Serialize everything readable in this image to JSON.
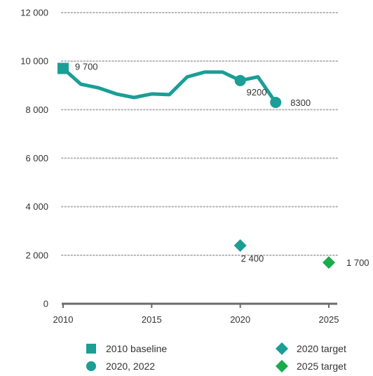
{
  "colors": {
    "line": "#1a9e96",
    "green_target": "#1aab4b",
    "axis": "#6b6b6b",
    "grid": "#b3b3b3",
    "text": "#333333"
  },
  "chart_data": {
    "type": "line",
    "title": "",
    "xlabel": "",
    "ylabel": "",
    "xlim": [
      2010,
      2025
    ],
    "ylim": [
      0,
      12000
    ],
    "x_ticks": [
      {
        "value": 2010,
        "label": "2010"
      },
      {
        "value": 2015,
        "label": "2015"
      },
      {
        "value": 2020,
        "label": "2020"
      },
      {
        "value": 2025,
        "label": "2025"
      }
    ],
    "y_ticks": [
      {
        "value": 0,
        "label": "0"
      },
      {
        "value": 2000,
        "label": "2 000"
      },
      {
        "value": 4000,
        "label": "4 000"
      },
      {
        "value": 6000,
        "label": "6 000"
      },
      {
        "value": 8000,
        "label": "8 000"
      },
      {
        "value": 10000,
        "label": "10 000"
      },
      {
        "value": 12000,
        "label": "12 000"
      }
    ],
    "grid": "horizontal dotted",
    "legend_position": "bottom",
    "series": [
      {
        "x": [
          2010,
          2011,
          2012,
          2013,
          2014,
          2015,
          2016,
          2017,
          2018,
          2019,
          2020,
          2021,
          2022
        ],
        "y": [
          9700,
          9050,
          8900,
          8650,
          8500,
          8650,
          8620,
          9350,
          9550,
          9550,
          9200,
          9350,
          8300
        ]
      }
    ],
    "markers": [
      {
        "name": "2010 baseline",
        "shape": "square",
        "color": "#1a9e96",
        "x": 2010,
        "y": 9700,
        "label": "9 700"
      },
      {
        "name": "2020, 2022",
        "shape": "circle",
        "color": "#1a9e96",
        "x": 2020,
        "y": 9200,
        "label": "9200"
      },
      {
        "name": "2020, 2022",
        "shape": "circle",
        "color": "#1a9e96",
        "x": 2022,
        "y": 8300,
        "label": "8300"
      },
      {
        "name": "2020 target",
        "shape": "diamond",
        "color": "#1a9e96",
        "x": 2020,
        "y": 2400,
        "label": "2 400"
      },
      {
        "name": "2025 target",
        "shape": "diamond",
        "color": "#1aab4b",
        "x": 2025,
        "y": 1700,
        "label": "1 700"
      }
    ],
    "legend": [
      {
        "label": "2010 baseline",
        "shape": "square",
        "color": "#1a9e96"
      },
      {
        "label": "2020, 2022",
        "shape": "circle",
        "color": "#1a9e96"
      },
      {
        "label": "2020 target",
        "shape": "diamond",
        "color": "#1a9e96"
      },
      {
        "label": "2025 target",
        "shape": "diamond",
        "color": "#1aab4b"
      }
    ]
  }
}
